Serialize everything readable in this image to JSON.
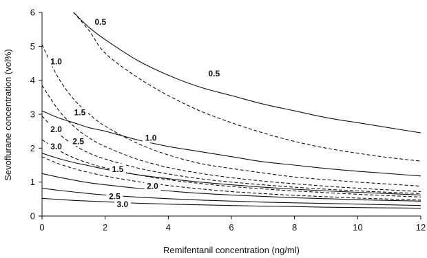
{
  "chart_data": {
    "type": "line",
    "title": "",
    "xlabel": "Remifentanil concentration (ng/ml)",
    "ylabel": "Sevoflurane concentration (vol%)",
    "xlim": [
      0,
      12
    ],
    "ylim": [
      0,
      6
    ],
    "x_ticks": [
      "0",
      "2",
      "4",
      "6",
      "8",
      "10",
      "12"
    ],
    "y_ticks": [
      "0",
      "1",
      "2",
      "3",
      "4",
      "5",
      "6"
    ],
    "grid": false,
    "legend": "none",
    "x": [
      0,
      0.5,
      1,
      1.5,
      2,
      3,
      4,
      5,
      6,
      7,
      8,
      9,
      10,
      11,
      12
    ],
    "series": [
      {
        "label": "0.5",
        "style": "solid",
        "values": [
          null,
          null,
          6.0,
          5.55,
          5.2,
          4.6,
          4.15,
          3.8,
          3.55,
          3.3,
          3.1,
          2.9,
          2.75,
          2.6,
          2.45
        ]
      },
      {
        "label": "1.0",
        "style": "solid",
        "values": [
          3.1,
          2.9,
          2.75,
          2.6,
          2.5,
          2.25,
          2.05,
          1.9,
          1.75,
          1.6,
          1.5,
          1.4,
          1.32,
          1.25,
          1.18
        ]
      },
      {
        "label": "1.5",
        "style": "solid",
        "values": [
          1.85,
          1.7,
          1.58,
          1.48,
          1.38,
          1.22,
          1.1,
          1.0,
          0.92,
          0.85,
          0.79,
          0.74,
          0.7,
          0.66,
          0.62
        ]
      },
      {
        "label": "2.0",
        "style": "solid",
        "values": [
          1.25,
          1.15,
          1.06,
          0.98,
          0.92,
          0.82,
          0.74,
          0.67,
          0.62,
          0.58,
          0.54,
          0.51,
          0.48,
          0.46,
          0.44
        ]
      },
      {
        "label": "2.5",
        "style": "solid",
        "values": [
          0.82,
          0.76,
          0.71,
          0.66,
          0.62,
          0.56,
          0.51,
          0.47,
          0.44,
          0.41,
          0.39,
          0.37,
          0.35,
          0.33,
          0.31
        ]
      },
      {
        "label": "3.0",
        "style": "solid",
        "values": [
          0.52,
          0.49,
          0.46,
          0.44,
          0.42,
          0.38,
          0.35,
          0.33,
          0.31,
          0.29,
          0.28,
          0.26,
          0.25,
          0.24,
          0.23
        ]
      },
      {
        "label": "0.5",
        "style": "dashed",
        "values": [
          null,
          null,
          6.0,
          5.45,
          4.8,
          4.1,
          3.55,
          3.1,
          2.75,
          2.45,
          2.2,
          2.0,
          1.85,
          1.72,
          1.62
        ]
      },
      {
        "label": "1.0",
        "style": "dashed",
        "values": [
          5.05,
          4.1,
          3.45,
          3.0,
          2.65,
          2.15,
          1.8,
          1.55,
          1.4,
          1.27,
          1.15,
          1.07,
          1.0,
          0.94,
          0.88
        ]
      },
      {
        "label": "1.5",
        "style": "dashed",
        "values": [
          3.85,
          3.15,
          2.65,
          2.3,
          2.05,
          1.68,
          1.43,
          1.26,
          1.13,
          1.03,
          0.95,
          0.88,
          0.82,
          0.77,
          0.72
        ]
      },
      {
        "label": "2.0",
        "style": "dashed",
        "values": [
          2.95,
          2.45,
          2.1,
          1.85,
          1.68,
          1.42,
          1.24,
          1.1,
          1.0,
          0.92,
          0.85,
          0.79,
          0.74,
          0.7,
          0.66
        ]
      },
      {
        "label": "2.5",
        "style": "dashed",
        "values": [
          2.25,
          1.95,
          1.72,
          1.55,
          1.42,
          1.22,
          1.07,
          0.96,
          0.87,
          0.8,
          0.74,
          0.69,
          0.64,
          0.6,
          0.56
        ]
      },
      {
        "label": "3.0",
        "style": "dashed",
        "values": [
          1.75,
          1.55,
          1.4,
          1.28,
          1.18,
          1.02,
          0.9,
          0.8,
          0.72,
          0.66,
          0.61,
          0.57,
          0.53,
          0.5,
          0.47
        ]
      }
    ],
    "curve_labels": [
      {
        "text": "0.5",
        "x": 1.85,
        "y": 5.72
      },
      {
        "text": "0.5",
        "x": 5.45,
        "y": 4.2
      },
      {
        "text": "1.0",
        "x": 0.45,
        "y": 4.55
      },
      {
        "text": "1.5",
        "x": 1.2,
        "y": 3.05
      },
      {
        "text": "2.0",
        "x": 0.45,
        "y": 2.55
      },
      {
        "text": "2.5",
        "x": 1.15,
        "y": 2.2
      },
      {
        "text": "3.0",
        "x": 0.45,
        "y": 2.05
      },
      {
        "text": "1.0",
        "x": 3.45,
        "y": 2.3
      },
      {
        "text": "1.5",
        "x": 2.4,
        "y": 1.38
      },
      {
        "text": "2.0",
        "x": 3.5,
        "y": 0.88
      },
      {
        "text": "2.5",
        "x": 2.3,
        "y": 0.58
      },
      {
        "text": "3.0",
        "x": 2.55,
        "y": 0.34
      }
    ]
  }
}
